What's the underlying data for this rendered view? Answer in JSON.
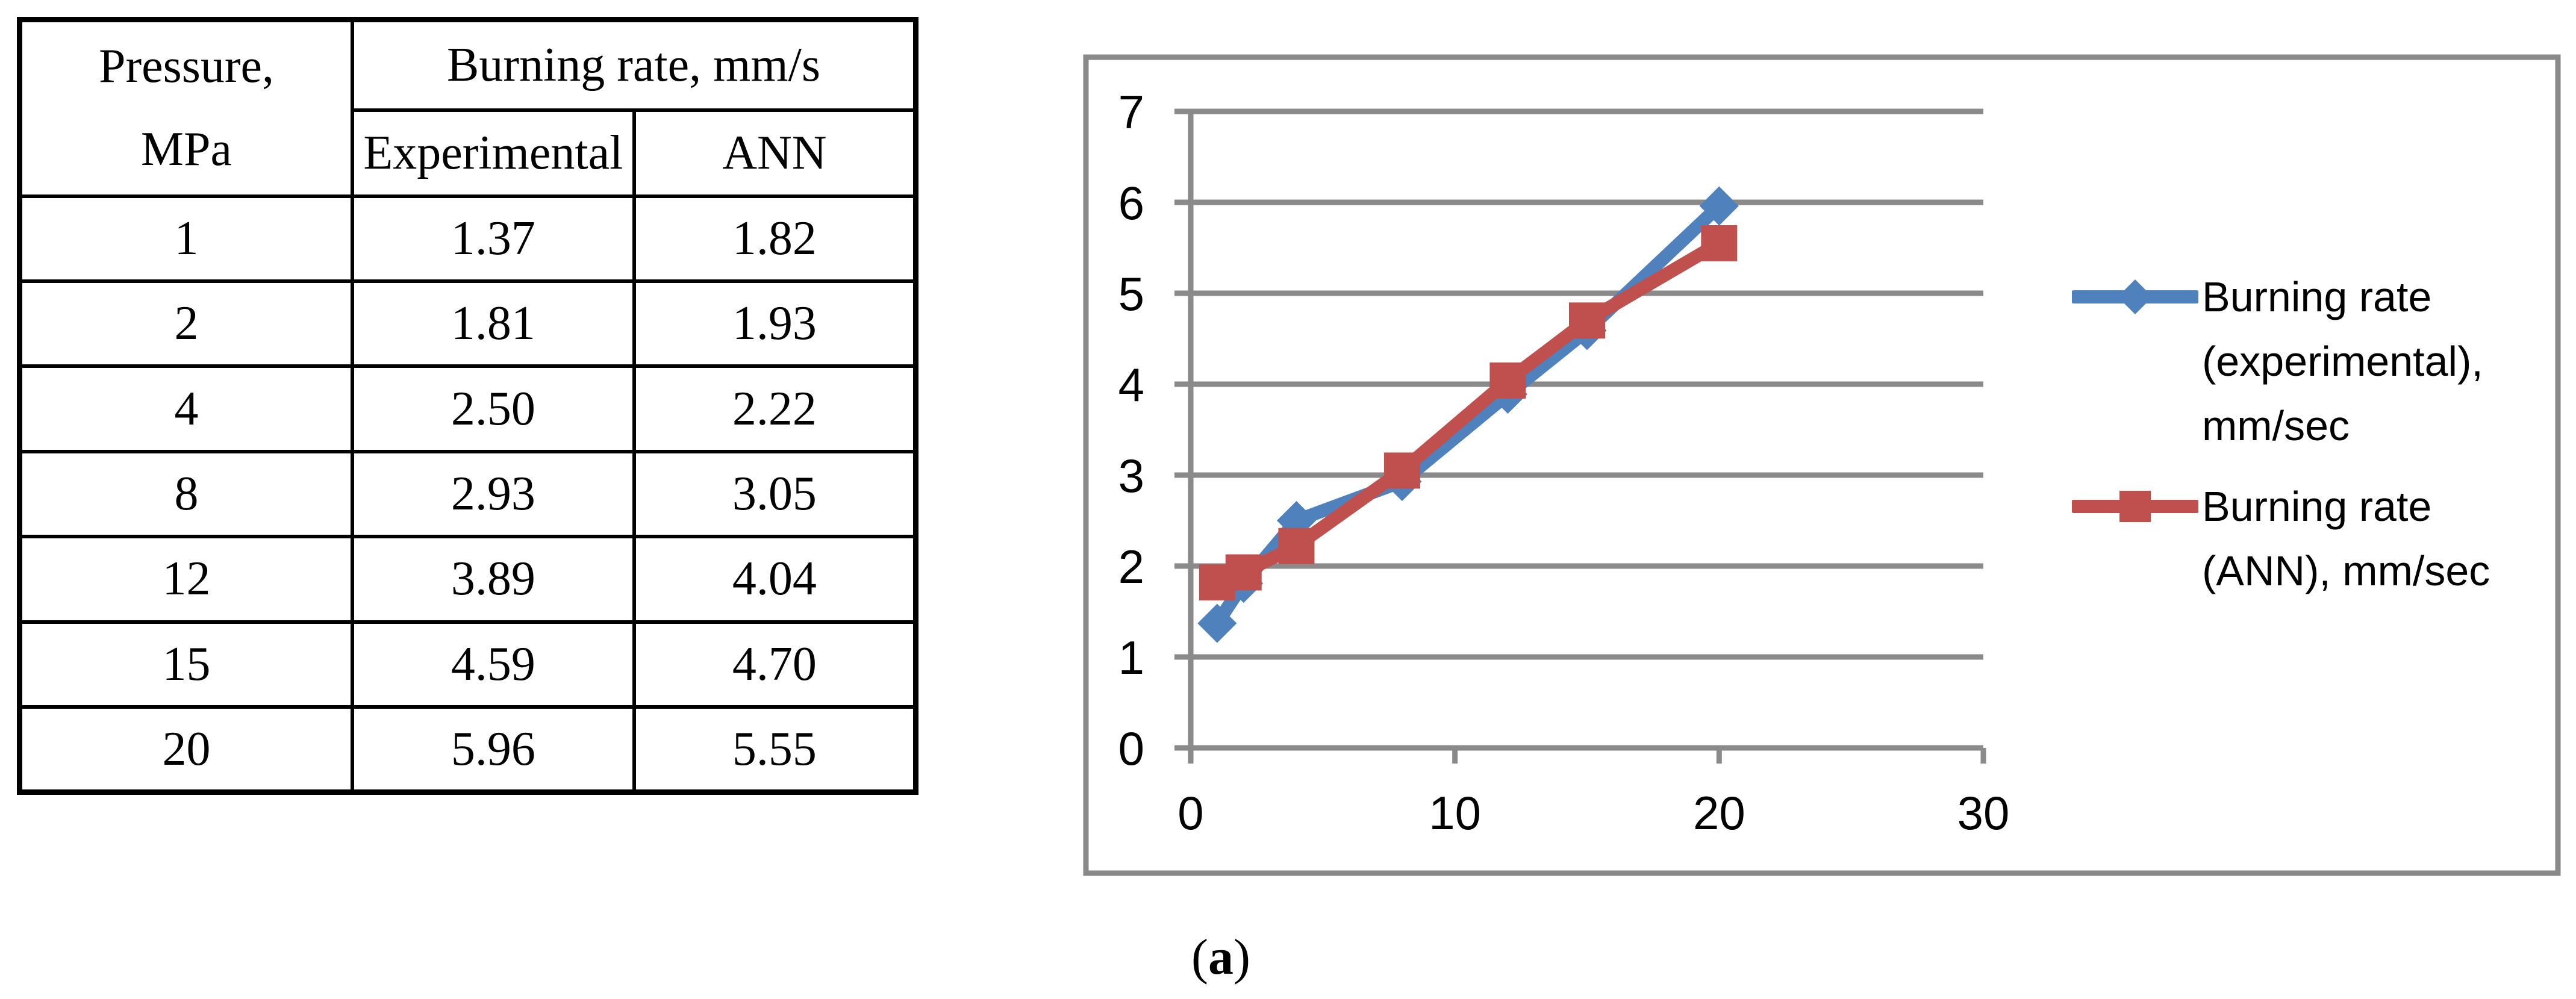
{
  "figure": {
    "caption": {
      "open": "(",
      "letter": "a",
      "close": ")"
    }
  },
  "table": {
    "header": {
      "col1_line1": "Pressure,",
      "col1_line2": "MPa",
      "col2": "Burning rate, mm/s",
      "sub": [
        "Experimental",
        "ANN"
      ]
    },
    "rows": [
      [
        "1",
        "1.37",
        "1.82"
      ],
      [
        "2",
        "1.81",
        "1.93"
      ],
      [
        "4",
        "2.50",
        "2.22"
      ],
      [
        "8",
        "2.93",
        "3.05"
      ],
      [
        "12",
        "3.89",
        "4.04"
      ],
      [
        "15",
        "4.59",
        "4.70"
      ],
      [
        "20",
        "5.96",
        "5.55"
      ]
    ]
  },
  "chart_data": {
    "type": "line",
    "x": [
      1,
      2,
      4,
      8,
      12,
      15,
      20
    ],
    "series": [
      {
        "name": "Burning rate (experimental), mm/sec",
        "values": [
          1.37,
          1.81,
          2.5,
          2.93,
          3.89,
          4.59,
          5.96
        ],
        "color": "#4F81BD",
        "marker": "diamond"
      },
      {
        "name": "Burning rate (ANN), mm/sec",
        "values": [
          1.82,
          1.93,
          2.22,
          3.05,
          4.04,
          4.7,
          5.55
        ],
        "color": "#C0504D",
        "marker": "square"
      }
    ],
    "xlim": [
      0,
      30
    ],
    "ylim": [
      0,
      7
    ],
    "x_ticks": [
      0,
      10,
      20,
      30
    ],
    "y_ticks": [
      0,
      1,
      2,
      3,
      4,
      5,
      6,
      7
    ],
    "grid": true,
    "legend_position": "right",
    "title": "",
    "xlabel": "",
    "ylabel": ""
  },
  "colors": {
    "axis_gray": "#8A8A8A",
    "text": "#000000",
    "background": "#FFFFFF"
  }
}
